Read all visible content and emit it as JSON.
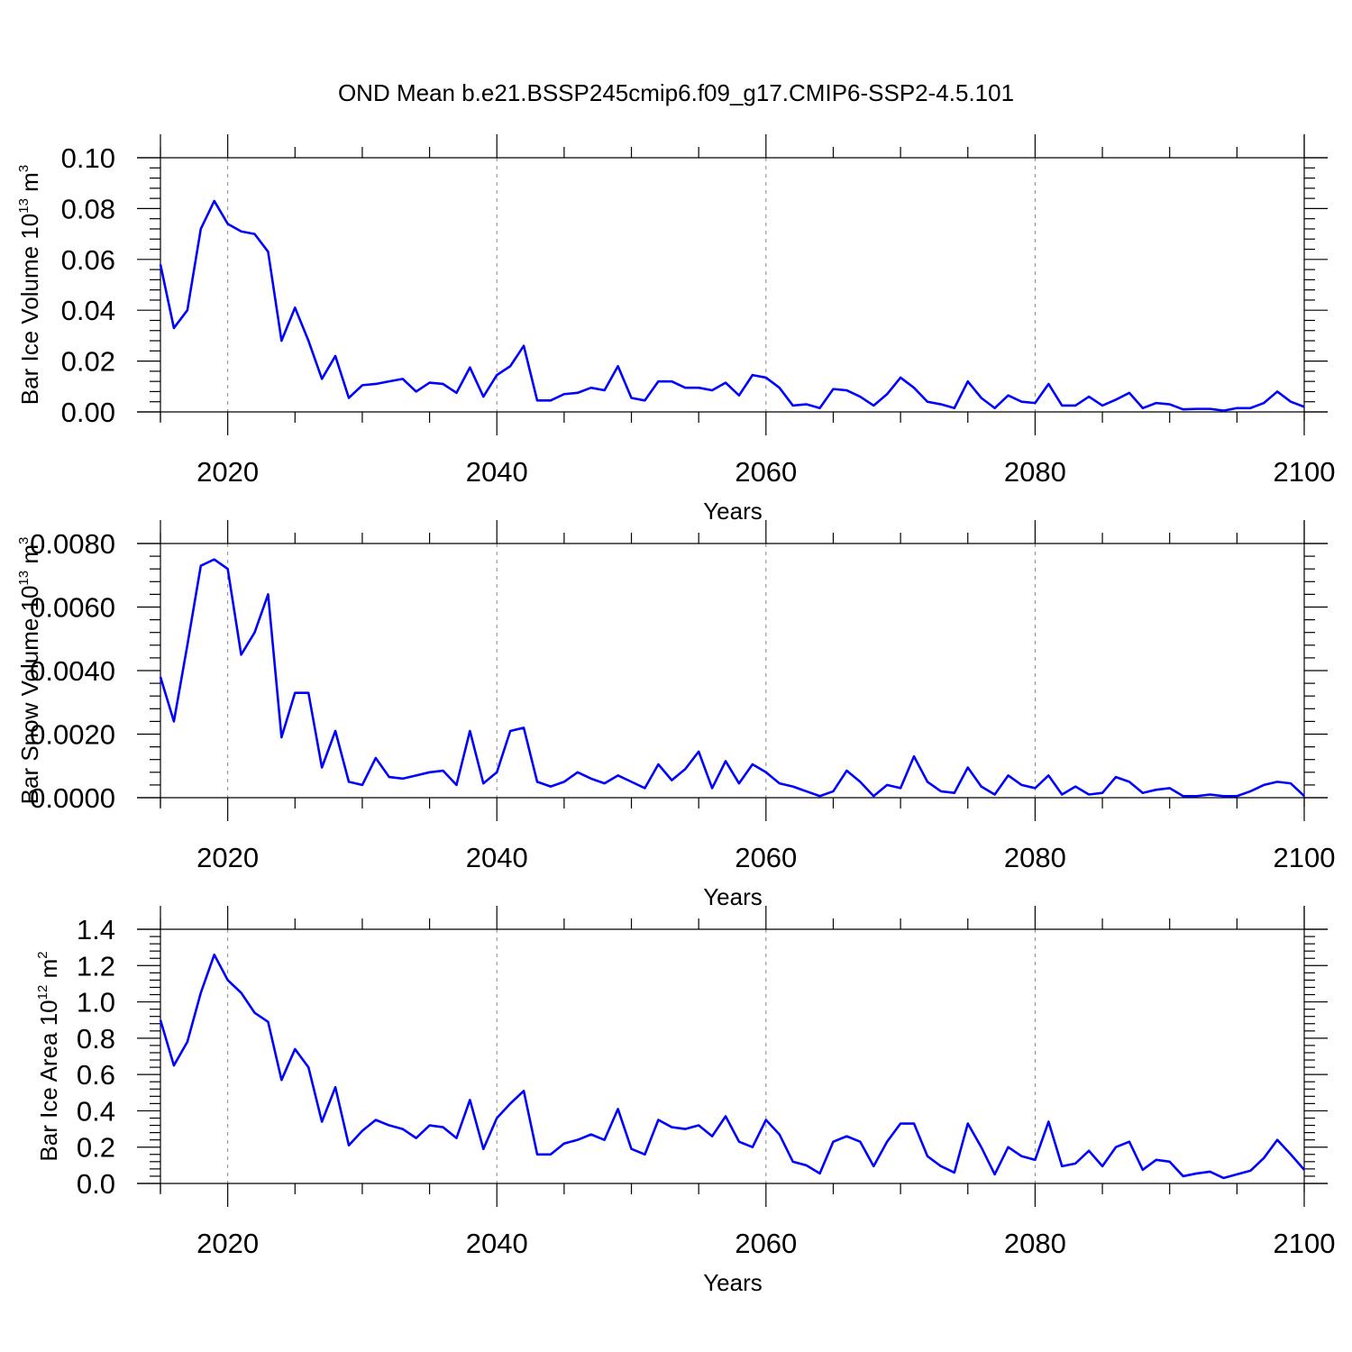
{
  "title": "OND Mean b.e21.BSSP245cmip6.f09_g17.CMIP6-SSP2-4.5.101",
  "colors": {
    "line": "#0000ff",
    "axis": "#000000",
    "grid": "#888888"
  },
  "chart_data": [
    {
      "type": "line",
      "xlabel": "Years",
      "ylabel": {
        "text": "Bar Ice Volume 10",
        "sup": "13",
        "unit": " m",
        "unit_sup": "3"
      },
      "xlim": [
        2015,
        2100
      ],
      "ylim": [
        0,
        0.1
      ],
      "xticks": [
        "2020",
        "2040",
        "2060",
        "2080",
        "2100"
      ],
      "yticks": [
        "0.00",
        "0.02",
        "0.04",
        "0.06",
        "0.08",
        "0.10"
      ],
      "x_start": 2015,
      "values": [
        0.058,
        0.033,
        0.04,
        0.072,
        0.083,
        0.074,
        0.071,
        0.07,
        0.063,
        0.028,
        0.041,
        0.028,
        0.013,
        0.022,
        0.0055,
        0.0105,
        0.011,
        0.012,
        0.013,
        0.008,
        0.0115,
        0.011,
        0.0075,
        0.0175,
        0.006,
        0.0145,
        0.018,
        0.026,
        0.0045,
        0.0045,
        0.007,
        0.0075,
        0.0095,
        0.0085,
        0.018,
        0.0055,
        0.0045,
        0.012,
        0.012,
        0.0095,
        0.0095,
        0.0085,
        0.0115,
        0.0065,
        0.0145,
        0.0135,
        0.0095,
        0.0025,
        0.003,
        0.0015,
        0.009,
        0.0085,
        0.006,
        0.0025,
        0.007,
        0.0135,
        0.0095,
        0.004,
        0.003,
        0.0015,
        0.012,
        0.0055,
        0.0015,
        0.0065,
        0.004,
        0.0035,
        0.011,
        0.0025,
        0.0025,
        0.006,
        0.0025,
        0.0048,
        0.0075,
        0.0015,
        0.0035,
        0.003,
        0.001,
        0.0012,
        0.0012,
        0.0005,
        0.0015,
        0.0015,
        0.0035,
        0.008,
        0.004,
        0.002
      ]
    },
    {
      "type": "line",
      "xlabel": "Years",
      "ylabel": {
        "text": "Bar Snow Volume 10",
        "sup": "13",
        "unit": " m",
        "unit_sup": "3"
      },
      "xlim": [
        2015,
        2100
      ],
      "ylim": [
        0,
        0.008
      ],
      "xticks": [
        "2020",
        "2040",
        "2060",
        "2080",
        "2100"
      ],
      "yticks": [
        "0.0000",
        "0.0020",
        "0.0040",
        "0.0060",
        "0.0080"
      ],
      "x_start": 2015,
      "values": [
        0.0038,
        0.0024,
        0.0048,
        0.0073,
        0.0075,
        0.0072,
        0.0045,
        0.0052,
        0.0064,
        0.0019,
        0.0033,
        0.0033,
        0.00095,
        0.0021,
        0.0005,
        0.0004,
        0.00125,
        0.00065,
        0.0006,
        0.0007,
        0.0008,
        0.00085,
        0.0004,
        0.0021,
        0.00045,
        0.0008,
        0.0021,
        0.0022,
        0.0005,
        0.00035,
        0.0005,
        0.0008,
        0.0006,
        0.00045,
        0.0007,
        0.0005,
        0.0003,
        0.00105,
        0.00055,
        0.0009,
        0.00145,
        0.0003,
        0.00115,
        0.00045,
        0.00105,
        0.0008,
        0.00045,
        0.00035,
        0.0002,
        5e-05,
        0.0002,
        0.00085,
        0.0005,
        5e-05,
        0.0004,
        0.0003,
        0.0013,
        0.0005,
        0.0002,
        0.00015,
        0.00095,
        0.00035,
        0.0001,
        0.0007,
        0.0004,
        0.0003,
        0.0007,
        0.0001,
        0.00035,
        0.0001,
        0.00015,
        0.00065,
        0.0005,
        0.00015,
        0.00025,
        0.0003,
        5e-05,
        5e-05,
        0.0001,
        5e-05,
        5e-05,
        0.0002,
        0.0004,
        0.0005,
        0.00045,
        5e-05
      ]
    },
    {
      "type": "line",
      "xlabel": "Years",
      "ylabel": {
        "text": "Bar Ice Area 10",
        "sup": "12",
        "unit": " m",
        "unit_sup": "2"
      },
      "xlim": [
        2015,
        2100
      ],
      "ylim": [
        0,
        1.4
      ],
      "xticks": [
        "2020",
        "2040",
        "2060",
        "2080",
        "2100"
      ],
      "yticks": [
        "0.0",
        "0.2",
        "0.4",
        "0.6",
        "0.8",
        "1.0",
        "1.2",
        "1.4"
      ],
      "x_start": 2015,
      "values": [
        0.9,
        0.65,
        0.78,
        1.05,
        1.26,
        1.12,
        1.05,
        0.94,
        0.89,
        0.57,
        0.74,
        0.64,
        0.34,
        0.53,
        0.21,
        0.29,
        0.35,
        0.32,
        0.3,
        0.25,
        0.32,
        0.31,
        0.25,
        0.46,
        0.19,
        0.36,
        0.44,
        0.51,
        0.16,
        0.16,
        0.22,
        0.24,
        0.27,
        0.24,
        0.41,
        0.19,
        0.16,
        0.35,
        0.31,
        0.3,
        0.32,
        0.26,
        0.37,
        0.23,
        0.2,
        0.35,
        0.27,
        0.12,
        0.1,
        0.055,
        0.23,
        0.26,
        0.23,
        0.095,
        0.23,
        0.33,
        0.33,
        0.15,
        0.095,
        0.06,
        0.33,
        0.2,
        0.05,
        0.2,
        0.15,
        0.13,
        0.34,
        0.095,
        0.11,
        0.18,
        0.095,
        0.2,
        0.23,
        0.075,
        0.13,
        0.12,
        0.04,
        0.055,
        0.065,
        0.03,
        0.05,
        0.07,
        0.14,
        0.24,
        0.16,
        0.075
      ]
    }
  ]
}
